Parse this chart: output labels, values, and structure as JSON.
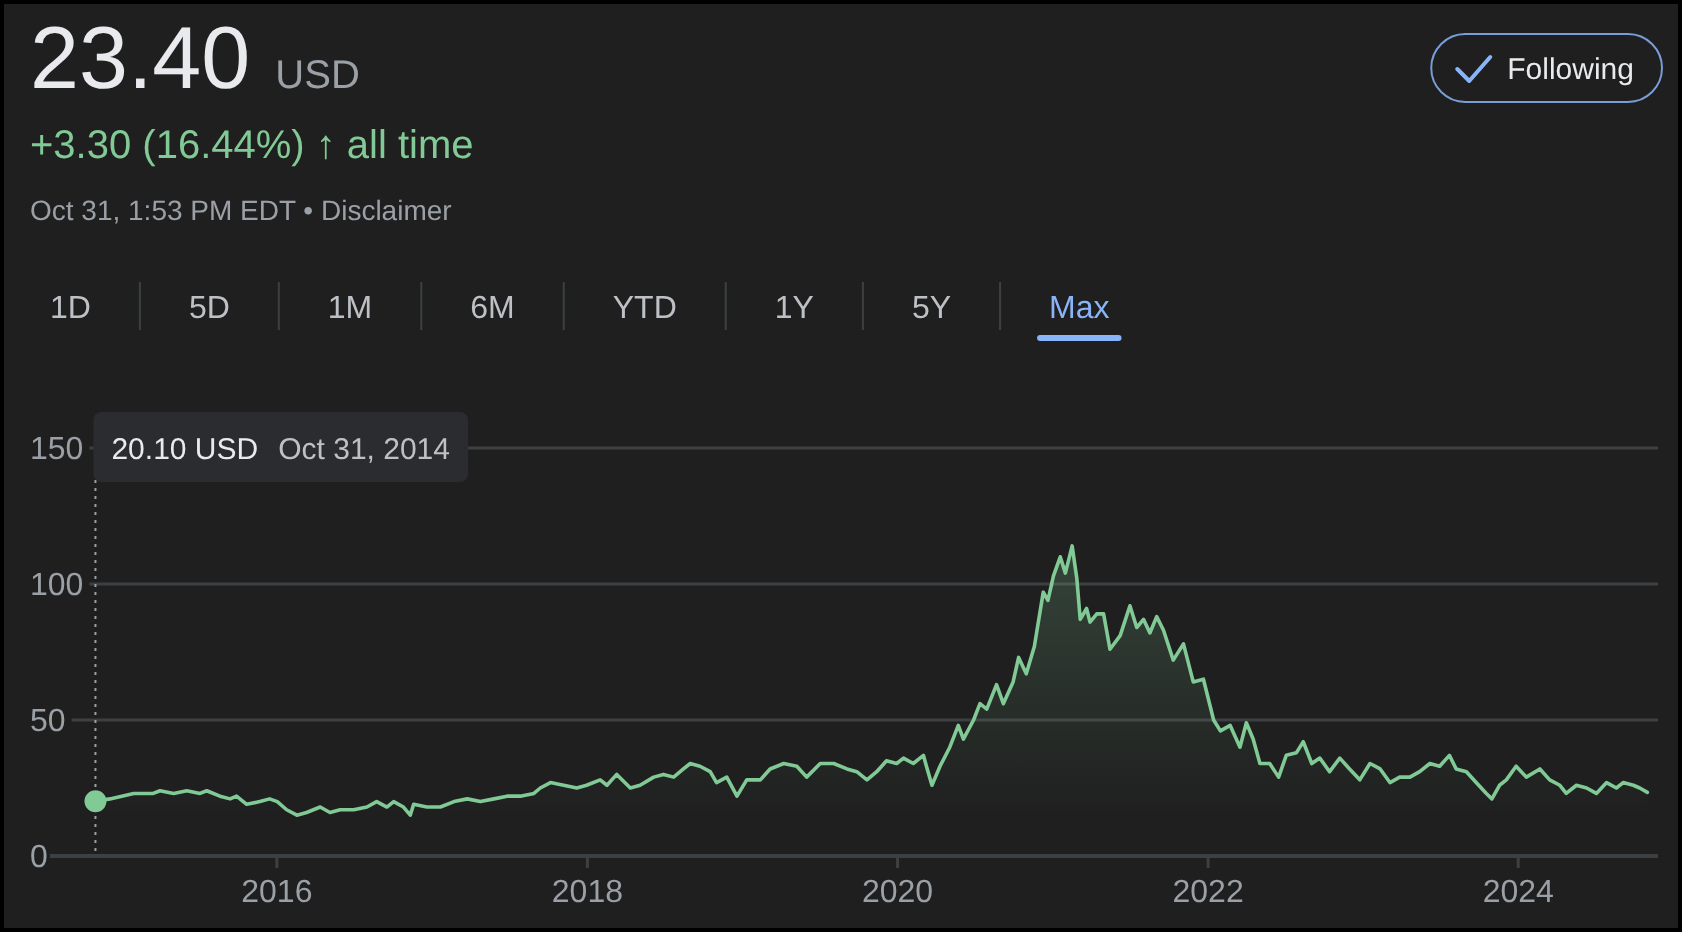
{
  "chart_data": {
    "type": "area",
    "title": "23.40 USD",
    "subtitle": "+3.30 (16.44%) ↑ all time",
    "annotations": [
      "Oct 31, 1:53 PM EDT • Disclaimer",
      "Following",
      "1D",
      "5D",
      "1M",
      "6M",
      "YTD",
      "1Y",
      "5Y",
      "Max",
      {
        "text": "20.10 USD",
        "x": "2014-10-31"
      }
    ],
    "x": [
      "2014-10-31",
      "2014-12-04",
      "2015-01-29",
      "2015-03-16",
      "2015-04-01",
      "2015-05-03",
      "2015-06-03",
      "2015-07-04",
      "2015-07-20",
      "2015-08-20",
      "2015-09-13",
      "2015-09-28",
      "2015-10-22",
      "2015-11-22",
      "2015-12-15",
      "2016-01-02",
      "2016-01-24",
      "2016-02-17",
      "2016-03-11",
      "2016-04-12",
      "2016-05-05",
      "2016-05-29",
      "2016-06-30",
      "2016-07-31",
      "2016-08-23",
      "2016-09-16",
      "2016-10-02",
      "2016-10-25",
      "2016-11-10",
      "2016-11-18",
      "2016-12-19",
      "2017-01-20",
      "2017-02-21",
      "2017-03-24",
      "2017-04-24",
      "2017-05-26",
      "2017-06-26",
      "2017-07-27",
      "2017-08-28",
      "2017-09-12",
      "2017-10-06",
      "2017-11-06",
      "2017-12-07",
      "2017-12-30",
      "2018-01-31",
      "2018-02-16",
      "2018-03-11",
      "2018-04-12",
      "2018-05-05",
      "2018-06-06",
      "2018-06-29",
      "2018-07-23",
      "2018-08-15",
      "2018-08-31",
      "2018-09-23",
      "2018-10-17",
      "2018-11-01",
      "2018-11-25",
      "2018-12-19",
      "2019-01-11",
      "2019-02-12",
      "2019-03-07",
      "2019-04-08",
      "2019-05-09",
      "2019-06-01",
      "2019-07-03",
      "2019-08-04",
      "2019-09-04",
      "2019-09-27",
      "2019-10-21",
      "2019-11-13",
      "2019-12-06",
      "2019-12-30",
      "2020-01-15",
      "2020-02-07",
      "2020-03-02",
      "2020-03-09",
      "2020-03-22",
      "2020-04-10",
      "2020-05-03",
      "2020-05-23",
      "2020-06-04",
      "2020-06-28",
      "2020-07-13",
      "2020-07-29",
      "2020-08-21",
      "2020-09-06",
      "2020-09-29",
      "2020-10-12",
      "2020-10-30",
      "2020-11-18",
      "2020-12-09",
      "2020-12-20",
      "2021-01-02",
      "2021-01-18",
      "2021-01-30",
      "2021-02-15",
      "2021-02-26",
      "2021-03-06",
      "2021-03-21",
      "2021-03-29",
      "2021-04-14",
      "2021-04-30",
      "2021-05-15",
      "2021-06-08",
      "2021-07-01",
      "2021-07-17",
      "2021-08-02",
      "2021-08-17",
      "2021-09-02",
      "2021-09-18",
      "2021-10-11",
      "2021-11-04",
      "2021-11-27",
      "2021-12-21",
      "2022-01-14",
      "2022-01-30",
      "2022-02-22",
      "2022-03-17",
      "2022-04-01",
      "2022-04-17",
      "2022-05-03",
      "2022-05-26",
      "2022-06-16",
      "2022-07-04",
      "2022-07-28",
      "2022-08-13",
      "2022-09-02",
      "2022-09-21",
      "2022-10-14",
      "2022-11-07",
      "2022-11-30",
      "2022-12-24",
      "2023-01-17",
      "2023-02-10",
      "2023-03-05",
      "2023-03-28",
      "2023-04-21",
      "2023-05-14",
      "2023-06-07",
      "2023-06-30",
      "2023-07-23",
      "2023-08-08",
      "2023-09-01",
      "2023-09-24",
      "2023-10-18",
      "2023-10-31",
      "2023-11-18",
      "2023-12-04",
      "2023-12-27",
      "2024-01-20",
      "2024-02-21",
      "2024-03-15",
      "2024-04-08",
      "2024-04-23",
      "2024-05-17",
      "2024-06-10",
      "2024-07-03",
      "2024-07-27",
      "2024-08-19",
      "2024-09-04",
      "2024-09-28",
      "2024-10-13",
      "2024-10-31"
    ],
    "series": [
      {
        "color": "#81c995",
        "values": [
          20.1,
          21,
          23,
          23,
          24,
          23,
          24,
          23,
          24,
          22,
          21,
          22,
          19,
          20,
          21,
          20,
          17,
          15,
          16,
          18,
          16,
          17,
          17,
          18,
          20,
          18,
          20,
          18,
          15,
          19,
          18,
          18,
          20,
          21,
          20,
          21,
          22,
          22,
          23,
          25,
          27,
          26,
          25,
          26,
          28,
          26,
          30,
          25,
          26,
          29,
          30,
          29,
          32,
          34,
          33,
          31,
          27,
          29,
          22,
          28,
          28,
          32,
          34,
          33,
          29,
          34,
          34,
          32,
          31,
          28,
          31,
          35,
          34,
          36,
          34,
          37,
          33,
          26,
          33,
          40,
          48,
          43,
          50,
          56,
          54,
          63,
          56,
          64,
          73,
          67,
          77,
          97,
          94,
          103,
          110,
          104,
          114,
          102,
          87,
          91,
          86,
          89,
          89,
          76,
          81,
          92,
          84,
          87,
          82,
          88,
          83,
          72,
          78,
          64,
          65,
          50,
          46,
          48,
          40,
          49,
          43,
          34,
          34,
          29,
          37,
          38,
          42,
          34,
          36,
          31,
          36,
          32,
          28,
          34,
          32,
          27,
          29,
          29,
          31,
          34,
          33,
          37,
          32,
          31,
          27,
          23,
          21,
          26,
          28,
          33,
          29,
          32,
          28,
          26,
          23,
          26,
          25,
          23,
          27,
          25,
          27,
          26,
          25,
          23.4
        ]
      },
      {
        "type": "scatter",
        "color": "#81c995",
        "marker": "circle",
        "x": [
          "2014-10-31"
        ],
        "values": [
          20.1
        ]
      }
    ],
    "xlim": [
      "2014-07-16",
      "2024-11-25"
    ],
    "xticks": [
      "2016",
      "2018",
      "2020",
      "2022",
      "2024"
    ],
    "ylim": [
      0,
      150
    ],
    "yticks": [
      0,
      50,
      100,
      150
    ],
    "grid": "y",
    "ref_lines": [
      {
        "axis": "x",
        "value": "2014-10-31",
        "label": "Oct 31, 2014",
        "line_style": "dotted",
        "color": "#9aa0a6"
      }
    ]
  }
}
